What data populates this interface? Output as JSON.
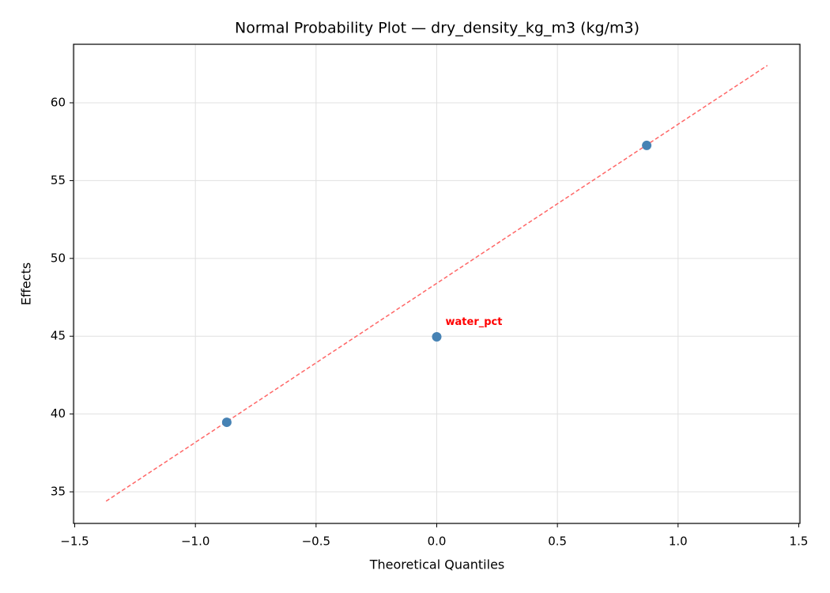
{
  "chart_data": {
    "type": "scatter",
    "title": "Normal Probability Plot — dry_density_kg_m3 (kg/m3)",
    "x_label": "Theoretical Quantiles",
    "y_label": "Effects",
    "series": [
      {
        "color": "#4682b4",
        "x": [
          -0.87,
          0,
          0.87
        ],
        "values": [
          39.47,
          44.96,
          57.26
        ],
        "point_labels": [
          null,
          "water_pct",
          null
        ],
        "point_label_color": "#ff0000"
      }
    ],
    "reference_line": {
      "color": "#ff6666",
      "x": [
        -1.37,
        1.37
      ],
      "values": [
        34.4,
        62.4
      ]
    },
    "xlim": [
      -1.505,
      1.505
    ],
    "ylim": [
      32.97,
      63.76
    ],
    "xticks": [
      {
        "value": -1.5,
        "label": "−1.5"
      },
      {
        "value": -1.0,
        "label": "−1.0"
      },
      {
        "value": -0.5,
        "label": "−0.5"
      },
      {
        "value": 0.0,
        "label": "0.0"
      },
      0.5,
      {
        "value": 1.0,
        "label": "1.0"
      },
      1.5
    ],
    "yticks": [
      35,
      40,
      45,
      50,
      55,
      60
    ],
    "grid": true
  }
}
